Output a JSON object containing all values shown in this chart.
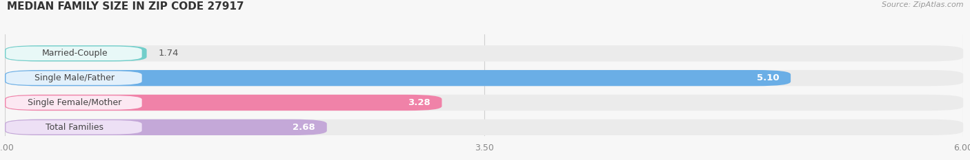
{
  "title": "MEDIAN FAMILY SIZE IN ZIP CODE 27917",
  "source": "Source: ZipAtlas.com",
  "categories": [
    "Married-Couple",
    "Single Male/Father",
    "Single Female/Mother",
    "Total Families"
  ],
  "values": [
    1.74,
    5.1,
    3.28,
    2.68
  ],
  "bar_colors": [
    "#72ceca",
    "#6aaee6",
    "#f082a8",
    "#c4a8d8"
  ],
  "label_bg_colors": [
    "#e8f8f7",
    "#e2f0fb",
    "#fce8f2",
    "#ede0f5"
  ],
  "xlim": [
    1.0,
    6.0
  ],
  "xticks": [
    1.0,
    3.5,
    6.0
  ],
  "value_label_colors_inside": [
    "#555555",
    "#ffffff",
    "#555555",
    "#555555"
  ],
  "background_color": "#f7f7f7",
  "bar_background_color": "#ebebeb",
  "title_fontsize": 11,
  "label_fontsize": 9,
  "value_fontsize": 9.5
}
